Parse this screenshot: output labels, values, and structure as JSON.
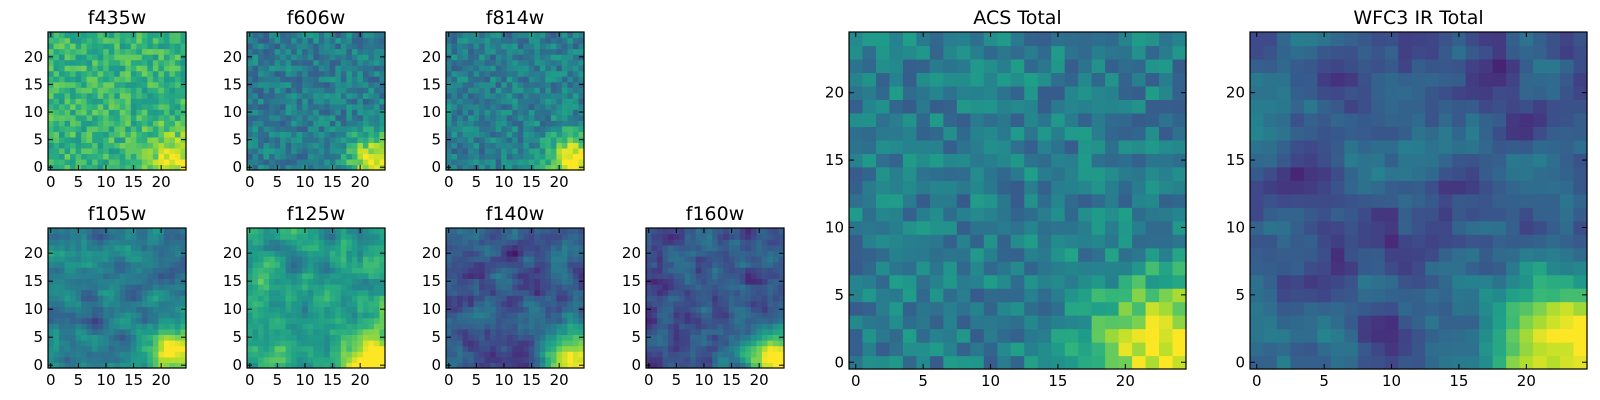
{
  "chart_data": [
    {
      "type": "heatmap",
      "title": "f435w",
      "xlim": [
        0,
        25
      ],
      "ylim": [
        0,
        25
      ],
      "xticks": [
        "0",
        "5",
        "10",
        "15",
        "20"
      ],
      "yticks": [
        "0",
        "5",
        "10",
        "15",
        "20"
      ],
      "grid": [
        25,
        25
      ],
      "colormap": "viridis",
      "pattern": "noisy_bright"
    },
    {
      "type": "heatmap",
      "title": "f606w",
      "xlim": [
        0,
        25
      ],
      "ylim": [
        0,
        25
      ],
      "xticks": [
        "0",
        "5",
        "10",
        "15",
        "20"
      ],
      "yticks": [
        "0",
        "5",
        "10",
        "15",
        "20"
      ],
      "grid": [
        25,
        25
      ],
      "colormap": "viridis",
      "pattern": "noisy_mid_hotspot"
    },
    {
      "type": "heatmap",
      "title": "f814w",
      "xlim": [
        0,
        25
      ],
      "ylim": [
        0,
        25
      ],
      "xticks": [
        "0",
        "5",
        "10",
        "15",
        "20"
      ],
      "yticks": [
        "0",
        "5",
        "10",
        "15",
        "20"
      ],
      "grid": [
        25,
        25
      ],
      "colormap": "viridis",
      "pattern": "noisy_mid_hotspot"
    },
    {
      "type": "heatmap",
      "title": "f105w",
      "xlim": [
        0,
        25
      ],
      "ylim": [
        0,
        25
      ],
      "xticks": [
        "0",
        "5",
        "10",
        "15",
        "20"
      ],
      "yticks": [
        "0",
        "5",
        "10",
        "15",
        "20"
      ],
      "grid": [
        25,
        25
      ],
      "colormap": "viridis",
      "pattern": "smooth_hotspot"
    },
    {
      "type": "heatmap",
      "title": "f125w",
      "xlim": [
        0,
        25
      ],
      "ylim": [
        0,
        25
      ],
      "xticks": [
        "0",
        "5",
        "10",
        "15",
        "20"
      ],
      "yticks": [
        "0",
        "5",
        "10",
        "15",
        "20"
      ],
      "grid": [
        25,
        25
      ],
      "colormap": "viridis",
      "pattern": "smooth_bright_hotspot"
    },
    {
      "type": "heatmap",
      "title": "f140w",
      "xlim": [
        0,
        25
      ],
      "ylim": [
        0,
        25
      ],
      "xticks": [
        "0",
        "5",
        "10",
        "15",
        "20"
      ],
      "yticks": [
        "0",
        "5",
        "10",
        "15",
        "20"
      ],
      "grid": [
        25,
        25
      ],
      "colormap": "viridis",
      "pattern": "smooth_dark_hotspot"
    },
    {
      "type": "heatmap",
      "title": "f160w",
      "xlim": [
        0,
        25
      ],
      "ylim": [
        0,
        25
      ],
      "xticks": [
        "0",
        "5",
        "10",
        "15",
        "20"
      ],
      "yticks": [
        "0",
        "5",
        "10",
        "15",
        "20"
      ],
      "grid": [
        25,
        25
      ],
      "colormap": "viridis",
      "pattern": "smooth_dark_hotspot"
    },
    {
      "type": "heatmap",
      "title": "ACS Total",
      "xlim": [
        0,
        25
      ],
      "ylim": [
        0,
        25
      ],
      "xticks": [
        "0",
        "5",
        "10",
        "15",
        "20"
      ],
      "yticks": [
        "0",
        "5",
        "10",
        "15",
        "20"
      ],
      "grid": [
        25,
        25
      ],
      "colormap": "viridis",
      "pattern": "noisy_mid_hotspot"
    },
    {
      "type": "heatmap",
      "title": "WFC3 IR Total",
      "xlim": [
        0,
        25
      ],
      "ylim": [
        0,
        25
      ],
      "xticks": [
        "0",
        "5",
        "10",
        "15",
        "20"
      ],
      "yticks": [
        "0",
        "5",
        "10",
        "15",
        "20"
      ],
      "grid": [
        25,
        25
      ],
      "colormap": "viridis",
      "pattern": "smooth_dark_hotspot"
    }
  ]
}
